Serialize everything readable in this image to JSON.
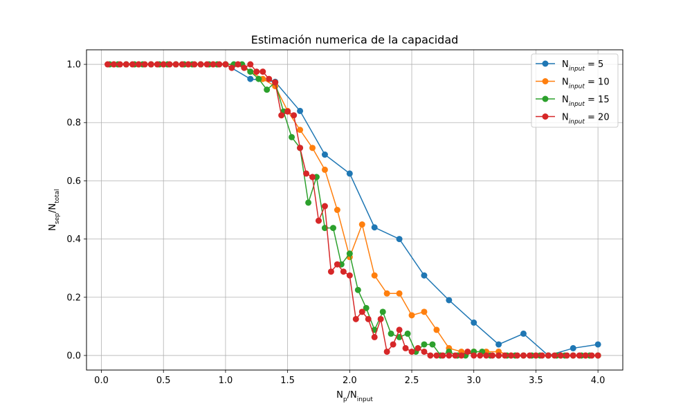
{
  "chart_data": {
    "type": "line",
    "title": "Estimación numerica de la capacidad",
    "xlabel": {
      "base": "N",
      "sub": "p",
      "sep": "/N",
      "sub2": "input"
    },
    "ylabel": {
      "base": "N",
      "sub": "sep",
      "sep": "/N",
      "sub2": "total"
    },
    "xlim": [
      -0.12,
      4.2
    ],
    "ylim": [
      -0.05,
      1.05
    ],
    "xticks": [
      0.0,
      0.5,
      1.0,
      1.5,
      2.0,
      2.5,
      3.0,
      3.5,
      4.0
    ],
    "xtick_labels": [
      "0.0",
      "0.5",
      "1.0",
      "1.5",
      "2.0",
      "2.5",
      "3.0",
      "3.5",
      "4.0"
    ],
    "yticks": [
      0.0,
      0.2,
      0.4,
      0.6,
      0.8,
      1.0
    ],
    "ytick_labels": [
      "0.0",
      "0.2",
      "0.4",
      "0.6",
      "0.8",
      "1.0"
    ],
    "grid": true,
    "legend_position": "top-right",
    "series": [
      {
        "name": "N_input = 5",
        "legend": {
          "base": "N",
          "sub": "input",
          "rest": " = 5"
        },
        "color": "#1f77b4",
        "x": [
          0.2,
          0.4,
          0.6,
          0.8,
          1.0,
          1.2,
          1.4,
          1.6,
          1.8,
          2.0,
          2.2,
          2.4,
          2.6,
          2.8,
          3.0,
          3.2,
          3.4,
          3.6,
          3.8,
          4.0
        ],
        "y": [
          1.0,
          1.0,
          1.0,
          1.0,
          1.0,
          0.95,
          0.94,
          0.84,
          0.69,
          0.625,
          0.44,
          0.4,
          0.275,
          0.19,
          0.113,
          0.038,
          0.075,
          0.0,
          0.025,
          0.038
        ]
      },
      {
        "name": "N_input = 10",
        "legend": {
          "base": "N",
          "sub": "input",
          "rest": " = 10"
        },
        "color": "#ff7f0e",
        "x": [
          0.1,
          0.2,
          0.3,
          0.4,
          0.5,
          0.6,
          0.7,
          0.8,
          0.9,
          1.0,
          1.1,
          1.2,
          1.3,
          1.4,
          1.5,
          1.6,
          1.7,
          1.8,
          1.9,
          2.0,
          2.1,
          2.2,
          2.3,
          2.4,
          2.5,
          2.6,
          2.7,
          2.8,
          2.9,
          3.0,
          3.1,
          3.2,
          3.3,
          3.4,
          3.5,
          3.6,
          3.7,
          3.8,
          3.9,
          4.0
        ],
        "y": [
          1.0,
          1.0,
          1.0,
          1.0,
          1.0,
          1.0,
          1.0,
          1.0,
          1.0,
          1.0,
          1.0,
          0.975,
          0.95,
          0.925,
          0.84,
          0.775,
          0.713,
          0.638,
          0.5,
          0.338,
          0.45,
          0.275,
          0.213,
          0.213,
          0.138,
          0.15,
          0.088,
          0.025,
          0.013,
          0.013,
          0.013,
          0.013,
          0.0,
          0.0,
          0.0,
          0.0,
          0.0,
          0.0,
          0.0,
          0.0
        ]
      },
      {
        "name": "N_input = 15",
        "legend": {
          "base": "N",
          "sub": "input",
          "rest": " = 15"
        },
        "color": "#2ca02c",
        "x": [
          0.067,
          0.133,
          0.2,
          0.267,
          0.333,
          0.4,
          0.467,
          0.533,
          0.6,
          0.667,
          0.733,
          0.8,
          0.867,
          0.933,
          1.0,
          1.067,
          1.133,
          1.2,
          1.267,
          1.333,
          1.4,
          1.467,
          1.533,
          1.6,
          1.667,
          1.733,
          1.8,
          1.867,
          1.933,
          2.0,
          2.067,
          2.133,
          2.2,
          2.267,
          2.333,
          2.4,
          2.467,
          2.533,
          2.6,
          2.667,
          2.733,
          2.8,
          2.867,
          2.933,
          3.0,
          3.067,
          3.133,
          3.2,
          3.267,
          3.333,
          3.4,
          3.467,
          3.533,
          3.6,
          3.667,
          3.733,
          3.8,
          3.867,
          3.933,
          4.0
        ],
        "y": [
          1.0,
          1.0,
          1.0,
          1.0,
          1.0,
          1.0,
          1.0,
          1.0,
          1.0,
          1.0,
          1.0,
          1.0,
          1.0,
          1.0,
          1.0,
          1.0,
          1.0,
          0.975,
          0.95,
          0.913,
          0.938,
          0.838,
          0.75,
          0.713,
          0.525,
          0.613,
          0.438,
          0.438,
          0.313,
          0.35,
          0.225,
          0.163,
          0.088,
          0.15,
          0.075,
          0.063,
          0.075,
          0.013,
          0.038,
          0.038,
          0.0,
          0.013,
          0.0,
          0.0,
          0.013,
          0.013,
          0.0,
          0.0,
          0.0,
          0.0,
          0.0,
          0.0,
          0.0,
          0.0,
          0.0,
          0.0,
          0.0,
          0.0,
          0.0,
          0.0
        ]
      },
      {
        "name": "N_input = 20",
        "legend": {
          "base": "N",
          "sub": "input",
          "rest": " = 20"
        },
        "color": "#d62728",
        "x": [
          0.05,
          0.1,
          0.15,
          0.2,
          0.25,
          0.3,
          0.35,
          0.4,
          0.45,
          0.5,
          0.55,
          0.6,
          0.65,
          0.7,
          0.75,
          0.8,
          0.85,
          0.9,
          0.95,
          1.0,
          1.05,
          1.1,
          1.15,
          1.2,
          1.25,
          1.3,
          1.35,
          1.4,
          1.45,
          1.5,
          1.55,
          1.6,
          1.65,
          1.7,
          1.75,
          1.8,
          1.85,
          1.9,
          1.95,
          2.0,
          2.05,
          2.1,
          2.15,
          2.2,
          2.25,
          2.3,
          2.35,
          2.4,
          2.45,
          2.5,
          2.55,
          2.6,
          2.65,
          2.7,
          2.75,
          2.8,
          2.85,
          2.9,
          2.95,
          3.0,
          3.05,
          3.1,
          3.15,
          3.2,
          3.25,
          3.3,
          3.35,
          3.4,
          3.45,
          3.5,
          3.55,
          3.6,
          3.65,
          3.7,
          3.75,
          3.8,
          3.85,
          3.9,
          3.95,
          4.0
        ],
        "y": [
          1.0,
          1.0,
          1.0,
          1.0,
          1.0,
          1.0,
          1.0,
          1.0,
          1.0,
          1.0,
          1.0,
          1.0,
          1.0,
          1.0,
          1.0,
          1.0,
          1.0,
          1.0,
          1.0,
          1.0,
          0.988,
          1.0,
          0.988,
          1.0,
          0.975,
          0.975,
          0.95,
          0.938,
          0.825,
          0.838,
          0.825,
          0.713,
          0.625,
          0.613,
          0.463,
          0.513,
          0.288,
          0.313,
          0.288,
          0.275,
          0.125,
          0.15,
          0.125,
          0.063,
          0.125,
          0.013,
          0.038,
          0.088,
          0.025,
          0.013,
          0.025,
          0.013,
          0.0,
          0.0,
          0.0,
          0.0,
          0.0,
          0.0,
          0.013,
          0.0,
          0.0,
          0.0,
          0.0,
          0.0,
          0.0,
          0.0,
          0.0,
          0.0,
          0.0,
          0.0,
          0.0,
          0.0,
          0.0,
          0.0,
          0.0,
          0.0,
          0.0,
          0.0,
          0.0,
          0.0
        ]
      }
    ]
  }
}
